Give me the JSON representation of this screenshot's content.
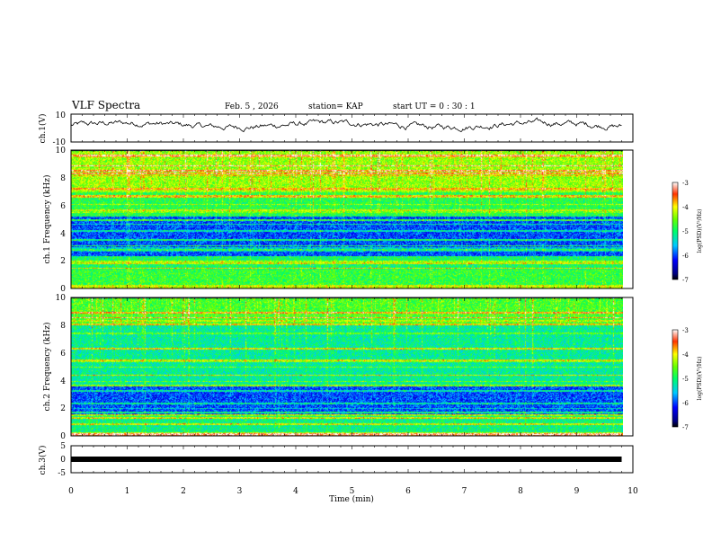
{
  "header": {
    "title": "VLF Spectra",
    "date": "Feb. 5 , 2026",
    "station": "station= KAP",
    "start_ut": "start UT = 0 : 30 : 1"
  },
  "chart_data": [
    {
      "type": "line",
      "panel": "ch.1 waveform",
      "ylabel": "ch.1(V)",
      "ylim": [
        -10,
        10
      ],
      "y_ticks": [
        "10",
        "-10"
      ],
      "x_range_min": [
        0,
        9.8
      ],
      "description_values": "noisy trace, roughly -2 to +6 V, mostly around +2 V"
    },
    {
      "type": "heatmap",
      "panel": "ch.1 spectrogram",
      "ylabel": "ch.1 Frequency (kHz)",
      "ylim": [
        0,
        10
      ],
      "y_ticks": [
        "0",
        "2",
        "4",
        "6",
        "8",
        "10"
      ],
      "colorbar": {
        "label": "log(PSD)(V²/Hz)",
        "range": [
          -7,
          -3
        ],
        "ticks": [
          "-3",
          "-4",
          "-5",
          "-6",
          "-7"
        ]
      },
      "bands": [
        {
          "f_min": 0.0,
          "f_max": 0.3,
          "level": -4.2
        },
        {
          "f_min": 0.3,
          "f_max": 1.4,
          "level": -4.8
        },
        {
          "f_min": 1.4,
          "f_max": 2.4,
          "level": -5.0
        },
        {
          "f_min": 2.4,
          "f_max": 5.2,
          "level": -6.0
        },
        {
          "f_min": 5.2,
          "f_max": 7.0,
          "level": -4.9
        },
        {
          "f_min": 7.0,
          "f_max": 10.0,
          "level": -4.4
        }
      ]
    },
    {
      "type": "heatmap",
      "panel": "ch.2 spectrogram",
      "ylabel": "ch.2 Frequency (kHz)",
      "ylim": [
        0,
        10
      ],
      "y_ticks": [
        "0",
        "2",
        "4",
        "6",
        "8",
        "10"
      ],
      "colorbar": {
        "label": "log(PSD)(V²/Hz)",
        "range": [
          -7,
          -3
        ],
        "ticks": [
          "-3",
          "-4",
          "-5",
          "-6",
          "-7"
        ]
      },
      "bands": [
        {
          "f_min": 0.0,
          "f_max": 0.3,
          "level": -4.3
        },
        {
          "f_min": 0.3,
          "f_max": 1.6,
          "level": -5.1
        },
        {
          "f_min": 1.6,
          "f_max": 3.6,
          "level": -6.0
        },
        {
          "f_min": 3.6,
          "f_max": 8.0,
          "level": -5.2
        },
        {
          "f_min": 8.0,
          "f_max": 10.0,
          "level": -4.7
        }
      ]
    },
    {
      "type": "line",
      "panel": "ch.3 waveform",
      "ylabel": "ch.3(V)",
      "ylim": [
        -5,
        5
      ],
      "y_ticks": [
        "5",
        "0",
        "-5"
      ],
      "x_range_min": [
        0,
        9.8
      ],
      "description_values": "thick flat band near 0 V"
    }
  ],
  "x_axis": {
    "label": "Time (min)",
    "range": [
      0,
      10
    ],
    "ticks": [
      "0",
      "1",
      "2",
      "3",
      "4",
      "5",
      "6",
      "7",
      "8",
      "9",
      "10"
    ]
  }
}
